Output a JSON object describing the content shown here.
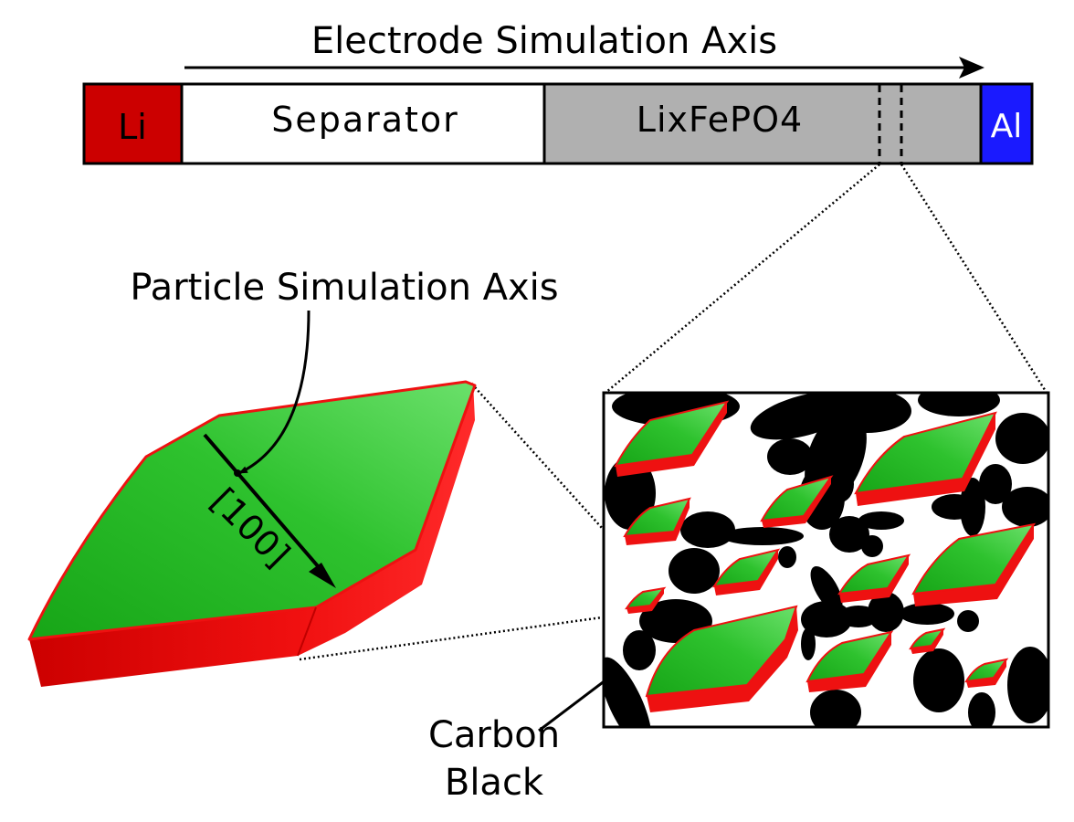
{
  "labels": {
    "electrode_axis": "Electrode Simulation Axis",
    "li": "Li",
    "separator": "Separator",
    "cathode": "LixFePO4",
    "al": "Al",
    "particle_axis": "Particle Simulation Axis",
    "direction": "[100]",
    "carbon_line1": "Carbon",
    "carbon_line2": "Black"
  },
  "colors": {
    "li": "#cc0000",
    "separator": "#ffffff",
    "cathode": "#b0b0b0",
    "al": "#1a1aff",
    "particle_top": "#22bb22",
    "particle_side": "#ee1111",
    "carbon": "#000000"
  }
}
